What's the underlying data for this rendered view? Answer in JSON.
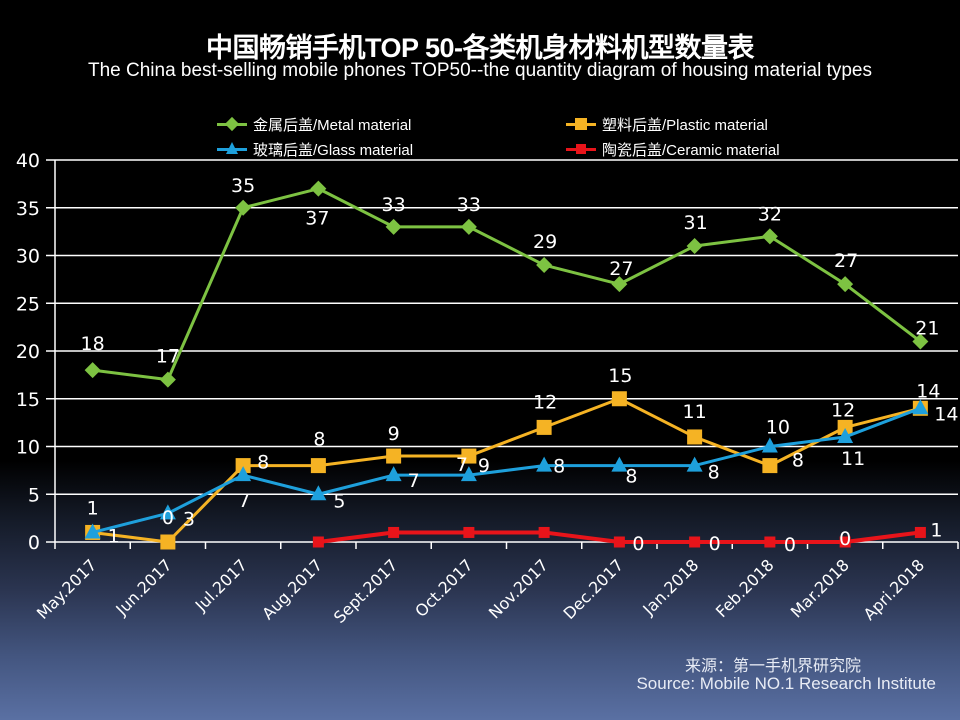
{
  "header": {
    "title_zh": "中国畅销手机TOP 50-各类机身材料机型数量表",
    "title_en": "The China best-selling mobile phones TOP50--the quantity diagram of housing material types"
  },
  "legend": [
    {
      "label": "金属后盖/Metal material",
      "series": 0
    },
    {
      "label": "塑料后盖/Plastic material",
      "series": 1
    },
    {
      "label": "玻璃后盖/Glass material",
      "series": 2
    },
    {
      "label": "陶瓷后盖/Ceramic material",
      "series": 3
    }
  ],
  "footer": {
    "source_zh": "来源：第一手机界研究院",
    "source_en": "Source: Mobile NO.1 Research Institute"
  },
  "chart_data": {
    "type": "line",
    "title": "中国畅销手机TOP 50-各类机身材料机型数量表",
    "subtitle": "The China best-selling mobile phones TOP50--the quantity diagram of housing material types",
    "xlabel": "",
    "ylabel": "",
    "categories": [
      "May.2017",
      "Jun.2017",
      "Jul.2017",
      "Aug.2017",
      "Sept.2017",
      "Oct.2017",
      "Nov.2017",
      "Dec.2017",
      "Jan.2018",
      "Feb.2018",
      "Mar.2018",
      "Apri.2018"
    ],
    "ylim": [
      0,
      40
    ],
    "yticks": [
      "0",
      "5",
      "10",
      "15",
      "20",
      "25",
      "30",
      "35",
      "40"
    ],
    "grid": true,
    "legend_position": "top",
    "series": [
      {
        "name": "金属后盖/Metal material",
        "color": "#7dc242",
        "marker": "diamond",
        "values": [
          18,
          17,
          35,
          37,
          33,
          33,
          29,
          27,
          31,
          32,
          27,
          21
        ],
        "data_labels": [
          "18",
          "17",
          "35",
          "37",
          "33",
          "33",
          "29",
          "27",
          "31",
          "32",
          "27",
          "21"
        ]
      },
      {
        "name": "塑料后盖/Plastic material",
        "color": "#f5b324",
        "marker": "square",
        "values": [
          1,
          0,
          8,
          8,
          9,
          9,
          12,
          15,
          11,
          8,
          12,
          14
        ],
        "data_labels": [
          "1",
          "0",
          "8",
          "8",
          "9",
          "9",
          "12",
          "15",
          "11",
          "8",
          "12",
          "14"
        ]
      },
      {
        "name": "玻璃后盖/Glass material",
        "color": "#1ea0dc",
        "marker": "triangle",
        "values": [
          1,
          3,
          7,
          5,
          7,
          7,
          8,
          8,
          8,
          10,
          11,
          14
        ],
        "data_labels": [
          "1",
          "3",
          "7",
          "5",
          "7",
          "7",
          "8",
          "8",
          "8",
          "10",
          "11",
          "14"
        ]
      },
      {
        "name": "陶瓷后盖/Ceramic material",
        "color": "#e8141a",
        "marker": "square",
        "values": [
          null,
          null,
          null,
          0,
          1,
          1,
          1,
          0,
          0,
          0,
          0,
          1
        ],
        "data_labels": [
          null,
          null,
          null,
          null,
          null,
          null,
          null,
          "0",
          "0",
          "0",
          "0",
          "1"
        ]
      }
    ]
  }
}
